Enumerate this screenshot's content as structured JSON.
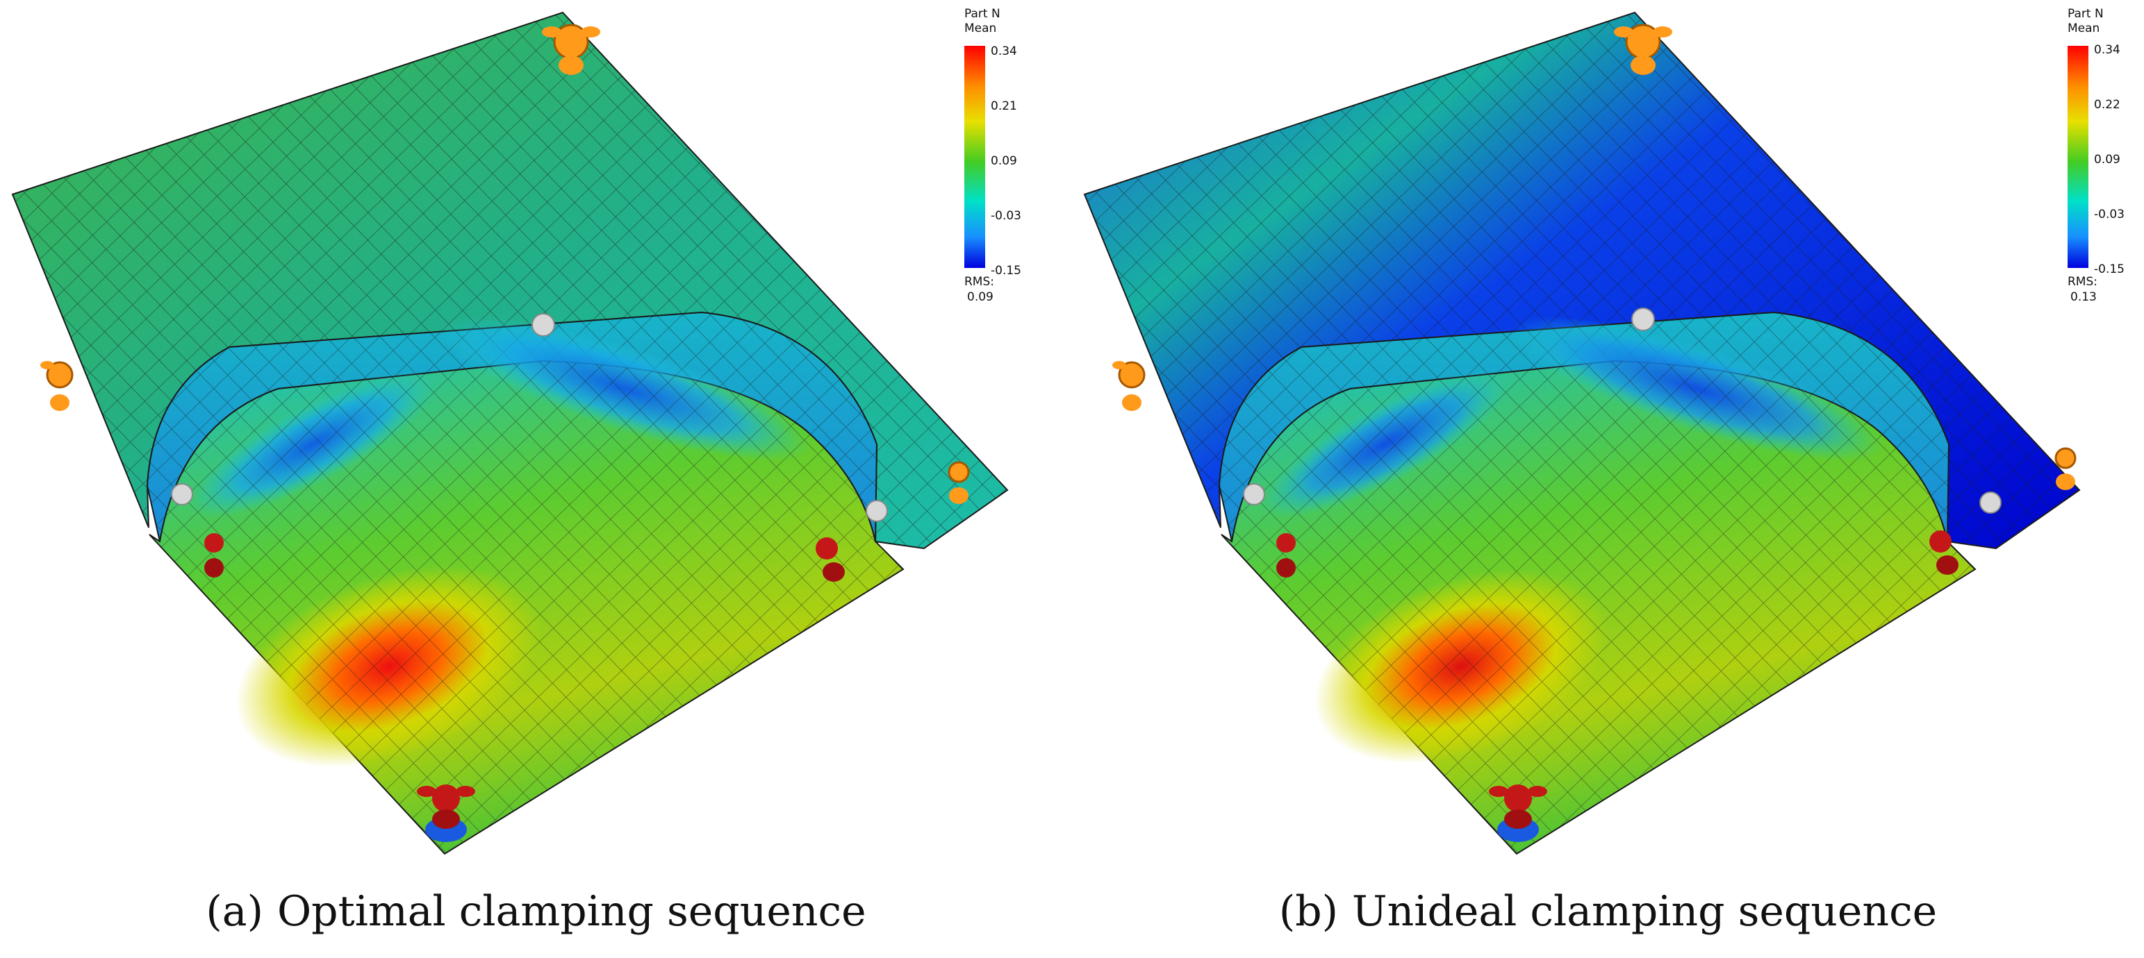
{
  "panels": [
    {
      "id": "a",
      "legend_title": "Part N",
      "legend_subtitle": "Mean",
      "ticks": [
        "0.34",
        "0.21",
        "0.09",
        "-0.03",
        "-0.15"
      ],
      "rms_label": "RMS:",
      "rms_value": "0.09",
      "caption_tag": "(a)",
      "caption_text": "Optimal clamping sequence"
    },
    {
      "id": "b",
      "legend_title": "Part N",
      "legend_subtitle": "Mean",
      "ticks": [
        "0.34",
        "0.22",
        "0.09",
        "-0.03",
        "-0.15"
      ],
      "rms_label": "RMS:",
      "rms_value": "0.13",
      "caption_tag": "(b)",
      "caption_text": "Unideal clamping sequence"
    }
  ],
  "colors": {
    "colormap": [
      "#ff0000",
      "#ff8c00",
      "#e8e000",
      "#44cc22",
      "#00e0c8",
      "#1890ff",
      "#0000dd"
    ],
    "clamp_orange": "#ff9a1a",
    "clamp_red": "#c41818",
    "locator_white": "#d8d8d8",
    "mesh_line": "#1a1a1a"
  }
}
